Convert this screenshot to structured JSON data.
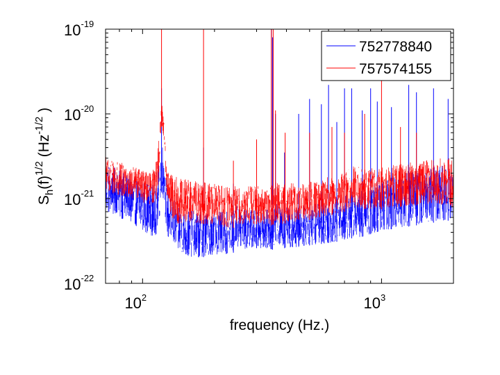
{
  "chart_data": {
    "type": "line",
    "title": "",
    "xlabel": "frequency (Hz.)",
    "ylabel": {
      "base": "S",
      "base_sub": "h",
      "mid": "(f)",
      "mid_sup": "1/2",
      "unit_open": " (Hz",
      "unit_sup": "-1/2",
      "unit_close": " )"
    },
    "x_scale": "log",
    "y_scale": "log",
    "xlim": [
      70,
      2000
    ],
    "ylim": [
      1e-22,
      1e-19
    ],
    "x_ticks": [
      {
        "value": 100,
        "base": "10",
        "exp": "2"
      },
      {
        "value": 1000,
        "base": "10",
        "exp": "3"
      }
    ],
    "y_ticks": [
      {
        "value": 1e-22,
        "base": "10",
        "exp": "-22"
      },
      {
        "value": 1e-21,
        "base": "10",
        "exp": "-21"
      },
      {
        "value": 1e-20,
        "base": "10",
        "exp": "-20"
      },
      {
        "value": 1e-19,
        "base": "10",
        "exp": "-19"
      }
    ],
    "grid": false,
    "legend_position": "top-right",
    "series": [
      {
        "name": "752778840",
        "color": "#0000ff",
        "band_x": [
          70,
          80,
          90,
          100,
          110,
          115,
          118,
          120,
          123,
          126,
          130,
          140,
          150,
          175,
          200,
          220,
          240,
          245,
          250,
          270,
          300,
          330,
          350,
          360,
          380,
          400,
          450,
          500,
          550,
          600,
          650,
          700,
          750,
          780,
          800,
          850,
          900,
          1000,
          1200,
          1500,
          1800,
          2000
        ],
        "band_low": [
          7e-22,
          6e-22,
          5e-22,
          4.2e-22,
          3.6e-22,
          3.8e-22,
          5e-22,
          1.2e-21,
          9e-22,
          4e-22,
          3e-22,
          2.4e-22,
          2e-22,
          2e-22,
          2.2e-22,
          2.2e-22,
          2.3e-22,
          3e-22,
          2.6e-22,
          2.5e-22,
          2.6e-22,
          2.6e-22,
          2.5e-22,
          3.2e-22,
          2.6e-22,
          2.6e-22,
          2.7e-22,
          2.8e-22,
          2.9e-22,
          3e-22,
          3.1e-22,
          3.3e-22,
          3.4e-22,
          3.6e-22,
          3.5e-22,
          3.6e-22,
          3.8e-22,
          4.2e-22,
          4.5e-22,
          5e-22,
          5.4e-22,
          5.6e-22
        ],
        "band_high": [
          2.8e-21,
          2.2e-21,
          1.8e-21,
          1.6e-21,
          1.5e-21,
          2e-21,
          3e-21,
          5e-21,
          3.4e-21,
          1.5e-21,
          1.1e-21,
          9e-22,
          7.5e-22,
          7e-22,
          7e-22,
          7e-22,
          7e-22,
          9e-22,
          8e-22,
          7.5e-22,
          7.4e-22,
          7.4e-22,
          7.5e-22,
          9e-22,
          7.5e-22,
          8e-22,
          8e-22,
          8.5e-22,
          9e-22,
          9.5e-22,
          1e-21,
          1.1e-21,
          1.2e-21,
          1.25e-21,
          1.2e-21,
          1.3e-21,
          1.5e-21,
          1.7e-21,
          2e-21,
          2.3e-21,
          2.5e-21,
          2.4e-21
        ],
        "peaks": [
          {
            "x": 120,
            "y": 2e-20
          },
          {
            "x": 180,
            "y": 4e-21
          },
          {
            "x": 240,
            "y": 1.5e-21
          },
          {
            "x": 300,
            "y": 3e-21
          },
          {
            "x": 346,
            "y": 1e-19
          },
          {
            "x": 350,
            "y": 8e-20
          },
          {
            "x": 360,
            "y": 1e-20
          },
          {
            "x": 393,
            "y": 3.5e-21
          },
          {
            "x": 450,
            "y": 1e-20
          },
          {
            "x": 500,
            "y": 1.5e-20
          },
          {
            "x": 560,
            "y": 1.3e-20
          },
          {
            "x": 600,
            "y": 2.2e-20
          },
          {
            "x": 650,
            "y": 8e-21
          },
          {
            "x": 700,
            "y": 2e-20
          },
          {
            "x": 750,
            "y": 2e-20
          },
          {
            "x": 830,
            "y": 1.1e-20
          },
          {
            "x": 900,
            "y": 2e-20
          },
          {
            "x": 960,
            "y": 1.4e-20
          },
          {
            "x": 1100,
            "y": 1.2e-20
          },
          {
            "x": 1300,
            "y": 2.2e-20
          },
          {
            "x": 1400,
            "y": 1.8e-20
          },
          {
            "x": 1650,
            "y": 2e-20
          },
          {
            "x": 1900,
            "y": 1.5e-20
          }
        ]
      },
      {
        "name": "757574155",
        "color": "#ff0000",
        "band_x": [
          70,
          80,
          90,
          100,
          110,
          115,
          118,
          120,
          123,
          126,
          130,
          140,
          150,
          175,
          200,
          220,
          240,
          245,
          250,
          270,
          300,
          330,
          350,
          360,
          380,
          400,
          450,
          500,
          550,
          600,
          650,
          700,
          750,
          780,
          800,
          850,
          900,
          1000,
          1200,
          1500,
          1800,
          2000
        ],
        "band_low": [
          1.2e-21,
          1.1e-21,
          1e-21,
          9e-22,
          8.5e-22,
          1e-21,
          3e-21,
          7e-21,
          5e-21,
          1.2e-21,
          6e-22,
          5e-22,
          5e-22,
          5e-22,
          5e-22,
          4.6e-22,
          4.5e-22,
          5e-22,
          5e-22,
          5e-22,
          5e-22,
          5e-22,
          4.8e-22,
          5.5e-22,
          5e-22,
          5.1e-22,
          5.4e-22,
          5.6e-22,
          6e-22,
          6.3e-22,
          6.6e-22,
          7e-22,
          8e-22,
          8.2e-22,
          7.8e-22,
          7.5e-22,
          7.4e-22,
          7.5e-22,
          8e-22,
          8.5e-22,
          8.5e-22,
          8e-22
        ],
        "band_high": [
          3.2e-21,
          2.7e-21,
          2.4e-21,
          2.2e-21,
          2.1e-21,
          3e-21,
          7e-21,
          1.5e-20,
          8e-21,
          2.4e-21,
          2e-21,
          1.8e-21,
          1.7e-21,
          1.6e-21,
          1.5e-21,
          1.4e-21,
          1.35e-21,
          1.5e-21,
          1.45e-21,
          1.4e-21,
          1.4e-21,
          1.4e-21,
          1.45e-21,
          1.6e-21,
          1.45e-21,
          1.5e-21,
          1.55e-21,
          1.6e-21,
          1.7e-21,
          1.8e-21,
          1.9e-21,
          2e-21,
          2.5e-21,
          2.6e-21,
          2.4e-21,
          2.3e-21,
          2.3e-21,
          2.4e-21,
          2.6e-21,
          2.8e-21,
          3e-21,
          3e-21
        ],
        "peaks": [
          {
            "x": 120,
            "y": 1e-19
          },
          {
            "x": 180,
            "y": 1.2e-19
          },
          {
            "x": 240,
            "y": 2.8e-21
          },
          {
            "x": 300,
            "y": 5e-21
          },
          {
            "x": 346,
            "y": 1e-19
          },
          {
            "x": 352,
            "y": 1e-19
          },
          {
            "x": 360,
            "y": 1.1e-20
          },
          {
            "x": 395,
            "y": 6e-21
          },
          {
            "x": 500,
            "y": 6e-21
          },
          {
            "x": 620,
            "y": 7e-21
          },
          {
            "x": 700,
            "y": 6e-21
          },
          {
            "x": 850,
            "y": 1e-20
          },
          {
            "x": 1000,
            "y": 6.5e-20
          },
          {
            "x": 1200,
            "y": 7e-21
          },
          {
            "x": 1400,
            "y": 6e-21
          }
        ]
      }
    ]
  }
}
